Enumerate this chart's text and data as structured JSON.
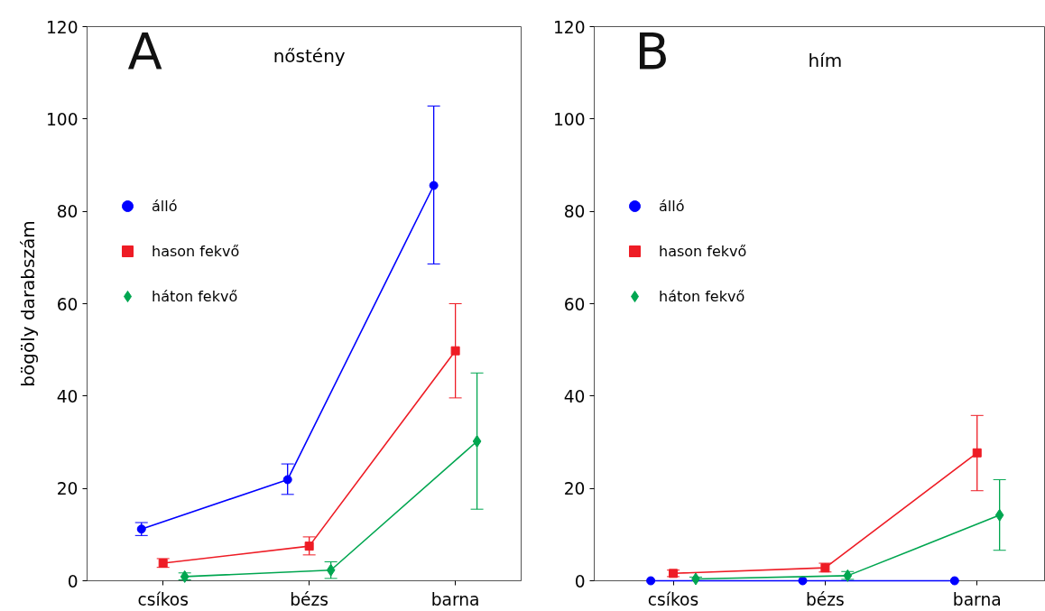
{
  "chart_data": [
    {
      "type": "line",
      "title": "nőstény",
      "ylabel": "bögöly darabszám",
      "annotations": [
        "A"
      ],
      "categories": [
        "csíkos",
        "bézs",
        "barna"
      ],
      "ylim": [
        0,
        120
      ],
      "yticks": [
        0,
        20,
        40,
        60,
        80,
        100,
        120
      ],
      "grid": false,
      "legend": "top left",
      "series": [
        {
          "name": "álló",
          "color": "#0000ff",
          "marker": "circle",
          "values": [
            11.2,
            21.9,
            85.6
          ],
          "errors": [
            [
              9.8,
              12.6
            ],
            [
              18.7,
              25.3
            ],
            [
              68.6,
              102.8
            ]
          ]
        },
        {
          "name": "hason fekvő",
          "color": "#ee1c25",
          "marker": "square",
          "values": [
            3.8,
            7.5,
            49.8
          ],
          "errors": [
            [
              2.9,
              4.8
            ],
            [
              5.6,
              9.5
            ],
            [
              39.6,
              60.0
            ]
          ]
        },
        {
          "name": "háton fekvő",
          "color": "#00a650",
          "marker": "diamond",
          "values": [
            0.9,
            2.3,
            30.2
          ],
          "errors": [
            [
              0.2,
              1.7
            ],
            [
              0.5,
              4.1
            ],
            [
              15.5,
              45.0
            ]
          ]
        }
      ]
    },
    {
      "type": "line",
      "title": "hím",
      "annotations": [
        "B"
      ],
      "categories": [
        "csíkos",
        "bézs",
        "barna"
      ],
      "ylim": [
        0,
        120
      ],
      "yticks": [
        0,
        20,
        40,
        60,
        80,
        100,
        120
      ],
      "grid": false,
      "legend": "top left",
      "series": [
        {
          "name": "álló",
          "color": "#0000ff",
          "marker": "circle",
          "values": [
            0,
            0,
            0
          ]
        },
        {
          "name": "hason fekvő",
          "color": "#ee1c25",
          "marker": "square",
          "values": [
            1.6,
            2.8,
            27.7
          ],
          "errors": [
            [
              0.9,
              2.3
            ],
            [
              1.9,
              3.8
            ],
            [
              19.5,
              35.8
            ]
          ]
        },
        {
          "name": "háton fekvő",
          "color": "#00a650",
          "marker": "diamond",
          "values": [
            0.4,
            1.1,
            14.2
          ],
          "errors": [
            [
              0.0,
              0.8
            ],
            [
              0.3,
              2.0
            ],
            [
              6.6,
              21.9
            ]
          ]
        }
      ]
    }
  ]
}
